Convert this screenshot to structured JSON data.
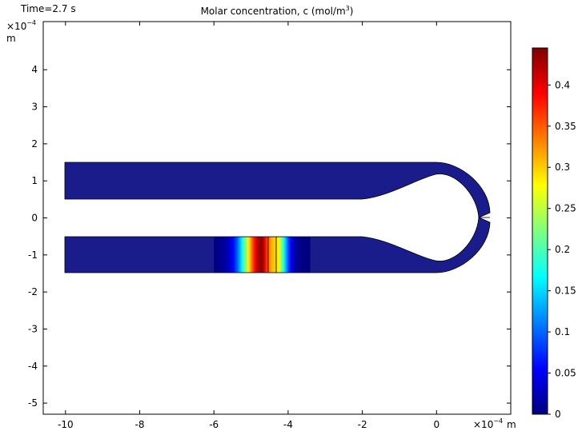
{
  "header": {
    "time_label": "Time=2.7 s",
    "title_main": "Molar concentration, c (mol/m",
    "title_sup": "3",
    "title_end": ")"
  },
  "axes": {
    "y_exponent_base": "×10",
    "y_exponent_power": "−4",
    "y_unit": "m",
    "x_exponent_base": "×10",
    "x_exponent_power": "−4",
    "x_unit": "m"
  },
  "chart_data": {
    "type": "heatmap",
    "title": "Molar concentration, c (mol/m3)",
    "time": "Time=2.7 s",
    "xlim": [
      -10.6,
      2.0
    ],
    "ylim": [
      -5.3,
      5.3
    ],
    "x_scale_exponent": -4,
    "y_scale_exponent": -4,
    "x_ticks": [
      -10,
      -8,
      -6,
      -4,
      -2,
      0
    ],
    "x_tick_labels": [
      "-10",
      "-8",
      "-6",
      "-4",
      "-2",
      "0"
    ],
    "y_ticks": [
      4,
      3,
      2,
      1,
      0,
      -1,
      -2,
      -3,
      -4,
      -5
    ],
    "y_tick_labels": [
      "4",
      "3",
      "2",
      "1",
      "0",
      "-1",
      "-2",
      "-3",
      "-4",
      "-5"
    ],
    "colorbar": {
      "range": [
        0,
        0.445
      ],
      "ticks": [
        0,
        0.05,
        0.1,
        0.15,
        0.2,
        0.25,
        0.3,
        0.35,
        0.4
      ],
      "tick_labels": [
        "0",
        "0.05",
        "0.1",
        "0.15",
        "0.2",
        "0.25",
        "0.3",
        "0.35",
        "0.4"
      ],
      "colormap": "jet"
    },
    "background_value": 0,
    "pulse": {
      "channel": "lower",
      "x_range": [
        -6.0,
        -3.4
      ],
      "x_peak": -4.7,
      "x_dip": -4.35,
      "peak_value": 0.44,
      "dip_value": 0.3
    },
    "colors": {
      "background": "#1b1c8c",
      "jet": [
        "#00007f",
        "#0000ff",
        "#007fff",
        "#00ffff",
        "#7fff7f",
        "#ffff00",
        "#ff7f00",
        "#ff0000",
        "#7f0000"
      ]
    }
  }
}
